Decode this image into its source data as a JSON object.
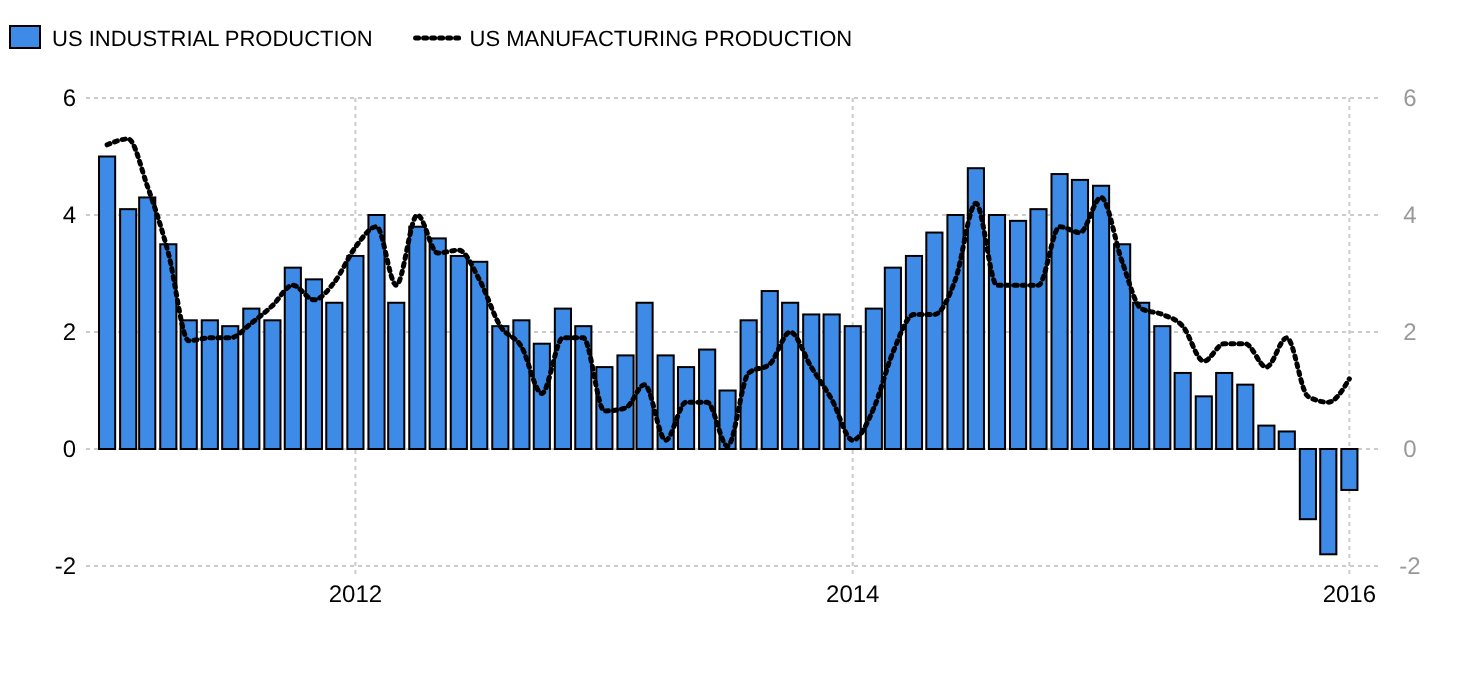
{
  "chart_data": {
    "type": "bar",
    "x": [
      "2011-01",
      "2011-02",
      "2011-03",
      "2011-04",
      "2011-05",
      "2011-06",
      "2011-07",
      "2011-08",
      "2011-09",
      "2011-10",
      "2011-11",
      "2011-12",
      "2012-01",
      "2012-02",
      "2012-03",
      "2012-04",
      "2012-05",
      "2012-06",
      "2012-07",
      "2012-08",
      "2012-09",
      "2012-10",
      "2012-11",
      "2012-12",
      "2013-01",
      "2013-02",
      "2013-03",
      "2013-04",
      "2013-05",
      "2013-06",
      "2013-07",
      "2013-08",
      "2013-09",
      "2013-10",
      "2013-11",
      "2013-12",
      "2014-01",
      "2014-02",
      "2014-03",
      "2014-04",
      "2014-05",
      "2014-06",
      "2014-07",
      "2014-08",
      "2014-09",
      "2014-10",
      "2014-11",
      "2014-12",
      "2015-01",
      "2015-02",
      "2015-03",
      "2015-04",
      "2015-05",
      "2015-06",
      "2015-07",
      "2015-08",
      "2015-09",
      "2015-10",
      "2015-11",
      "2015-12",
      "2016-01"
    ],
    "series": [
      {
        "name": "US INDUSTRIAL PRODUCTION",
        "color": "#3d8be6",
        "values": [
          5.0,
          4.1,
          4.3,
          3.5,
          2.2,
          2.2,
          2.1,
          2.4,
          2.2,
          3.1,
          2.9,
          2.5,
          3.3,
          4.0,
          2.5,
          3.8,
          3.6,
          3.3,
          3.2,
          2.1,
          2.2,
          1.8,
          2.4,
          2.1,
          1.4,
          1.6,
          2.5,
          1.6,
          1.4,
          1.7,
          1.0,
          2.2,
          2.7,
          2.5,
          2.3,
          2.3,
          2.1,
          2.4,
          3.1,
          3.3,
          3.7,
          4.0,
          4.8,
          4.0,
          3.9,
          4.1,
          4.7,
          4.6,
          4.5,
          3.5,
          2.5,
          2.1,
          1.3,
          0.9,
          1.3,
          1.1,
          0.4,
          0.3,
          -1.2,
          -1.8,
          -0.7
        ]
      },
      {
        "name": "US MANUFACTURING PRODUCTION",
        "type": "line",
        "color": "#000000",
        "line_style": "dotted",
        "values": [
          5.2,
          5.3,
          4.5,
          3.35,
          1.85,
          1.9,
          1.9,
          2.15,
          2.45,
          2.8,
          2.55,
          2.85,
          3.45,
          3.8,
          2.8,
          4.0,
          3.35,
          3.4,
          2.9,
          2.1,
          1.75,
          0.95,
          1.9,
          1.9,
          0.65,
          0.7,
          1.1,
          0.15,
          0.8,
          0.8,
          0.05,
          1.3,
          1.45,
          2.0,
          1.4,
          0.85,
          0.15,
          0.7,
          1.65,
          2.3,
          2.3,
          2.9,
          4.2,
          2.8,
          2.8,
          2.8,
          3.8,
          3.7,
          4.3,
          3.2,
          2.4,
          2.3,
          2.1,
          1.5,
          1.8,
          1.8,
          1.4,
          1.9,
          0.9,
          0.8,
          1.2
        ]
      }
    ],
    "xlim": [
      "2010-12-01",
      "2016-02-15"
    ],
    "xticks": [
      {
        "value": "2012-01",
        "label": "2012"
      },
      {
        "value": "2014-01",
        "label": "2014"
      },
      {
        "value": "2016-01",
        "label": "2016"
      }
    ],
    "ylim": [
      -2,
      6
    ],
    "yticks": [
      -2,
      0,
      2,
      4,
      6
    ],
    "y2lim": [
      -2,
      6
    ],
    "y2ticks": [
      -2,
      0,
      2,
      4,
      6
    ],
    "grid": true,
    "legend": "top left",
    "marker": "none"
  }
}
